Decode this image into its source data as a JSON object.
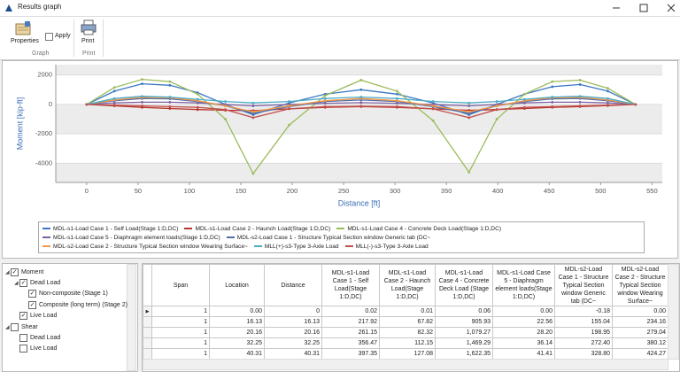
{
  "window": {
    "title": "Results graph"
  },
  "toolbar": {
    "properties": "Properties",
    "apply": "Apply",
    "graph_group": "Graph",
    "print": "Print",
    "print_group": "Print"
  },
  "chart_data": {
    "type": "line",
    "xlabel": "Distance [ft]",
    "ylabel": "Moment [kip-ft]",
    "x": [
      0,
      27,
      54,
      81,
      108,
      135,
      162,
      197,
      232,
      267,
      302,
      337,
      372,
      399,
      426,
      453,
      480,
      507,
      534
    ],
    "xlim": [
      -30,
      560
    ],
    "xticks": [
      0,
      50,
      100,
      150,
      200,
      250,
      300,
      350,
      400,
      450,
      500,
      550
    ],
    "ylim": [
      -5300,
      2700
    ],
    "yticks": [
      2000,
      0,
      -2000,
      -4000
    ],
    "grid": true,
    "series": [
      {
        "name": "MDL-s1-Load Case 1 - Self Load(Stage 1:D,DC)",
        "color": "#3a78c3",
        "values": [
          0,
          900,
          1400,
          1300,
          800,
          0,
          -700,
          100,
          700,
          1000,
          700,
          100,
          -700,
          0,
          700,
          1200,
          1350,
          900,
          0
        ]
      },
      {
        "name": "MDL-s1-Load Case 2 - Haunch Load(Stage 1:D,DC)",
        "color": "#b8342a",
        "values": [
          0,
          -100,
          -200,
          -280,
          -350,
          -400,
          -420,
          -300,
          -200,
          -150,
          -200,
          -300,
          -400,
          -350,
          -280,
          -200,
          -150,
          -80,
          0
        ]
      },
      {
        "name": "MDL-s1-Load Case 4 - Concrete Deck Load(Stage 1:D,DC)",
        "color": "#9bbb59",
        "values": [
          0,
          1150,
          1700,
          1550,
          700,
          -1000,
          -4700,
          -1400,
          600,
          1650,
          900,
          -1100,
          -4600,
          -1000,
          700,
          1550,
          1650,
          1100,
          0
        ]
      },
      {
        "name": "MDL-s1-Load Case 5 - Diaphragm element loads(Stage 1:D,DC)",
        "color": "#7d5fa0",
        "values": [
          0,
          100,
          150,
          150,
          100,
          0,
          -100,
          0,
          80,
          120,
          80,
          0,
          -100,
          0,
          100,
          150,
          150,
          100,
          0
        ]
      },
      {
        "name": "MDL-s2-Load Case 1 - Structure Typical Section window Generic tab (DC~",
        "color": "#4f6fa8",
        "values": [
          0,
          250,
          400,
          380,
          200,
          -100,
          -600,
          -150,
          200,
          300,
          200,
          -150,
          -600,
          -100,
          200,
          380,
          400,
          250,
          0
        ]
      },
      {
        "name": "MDL-s2-Load Case 2 - Structure Typical Section window Wearing Surface~",
        "color": "#f79646",
        "values": [
          0,
          300,
          480,
          450,
          250,
          -100,
          -500,
          -100,
          250,
          400,
          250,
          -100,
          -500,
          -100,
          250,
          450,
          480,
          300,
          0
        ]
      },
      {
        "name": "MLL(+)-s3-Type 3-Axle Load",
        "color": "#4bacc6",
        "values": [
          0,
          400,
          550,
          500,
          350,
          200,
          100,
          200,
          400,
          500,
          400,
          200,
          100,
          200,
          350,
          500,
          550,
          400,
          0
        ]
      },
      {
        "name": "MLL(-)-s3-Type 3-Axle Load",
        "color": "#c0504d",
        "values": [
          0,
          -50,
          -100,
          -150,
          -200,
          -350,
          -900,
          -300,
          -150,
          -120,
          -150,
          -300,
          -900,
          -350,
          -200,
          -150,
          -100,
          -50,
          0
        ]
      }
    ]
  },
  "tree": [
    {
      "label": "Moment",
      "checked": true,
      "children": [
        {
          "label": "Dead Load",
          "checked": true,
          "children": [
            {
              "label": "Non-composite (Stage 1)",
              "checked": true
            },
            {
              "label": "Composite (long term) (Stage 2)",
              "checked": true
            }
          ]
        },
        {
          "label": "Live Load",
          "checked": true
        }
      ]
    },
    {
      "label": "Shear",
      "checked": false,
      "children": [
        {
          "label": "Dead Load",
          "checked": false
        },
        {
          "label": "Live Load",
          "checked": false
        }
      ]
    }
  ],
  "table": {
    "columns": [
      "Span",
      "Location",
      "Distance",
      "MDL-s1-Load Case 1 - Self Load(Stage 1:D,DC)",
      "MDL-s1-Load Case 2 - Haunch Load(Stage 1:D,DC)",
      "MDL-s1-Load Case 4 - Concrete Deck Load (Stage 1:D,DC)",
      "MDL-s1-Load Case 5 - Diaphragm element loads(Stage 1:D,DC)",
      "MDL-s2-Load Case 1 - Structure Typical Section window Generic tab (DC~",
      "MDL-s2-Load Case 2 - Structure Typical Section window Wearing Surface~"
    ],
    "rows": [
      [
        "1",
        "0.00",
        "0",
        "0.02",
        "0.01",
        "0.06",
        "0.00",
        "-0.18",
        "0.00"
      ],
      [
        "1",
        "16.13",
        "16.13",
        "217.92",
        "67.82",
        "905.93",
        "22.56",
        "155.04",
        "234.16"
      ],
      [
        "1",
        "20.16",
        "20.16",
        "261.15",
        "82.32",
        "1,079.27",
        "28.20",
        "198.95",
        "279.04"
      ],
      [
        "1",
        "32.25",
        "32.25",
        "356.47",
        "112.15",
        "1,469.29",
        "36.14",
        "272.40",
        "380.12"
      ],
      [
        "1",
        "40.31",
        "40.31",
        "397.35",
        "127.08",
        "1,622.35",
        "41.41",
        "328.80",
        "424.27"
      ]
    ]
  }
}
